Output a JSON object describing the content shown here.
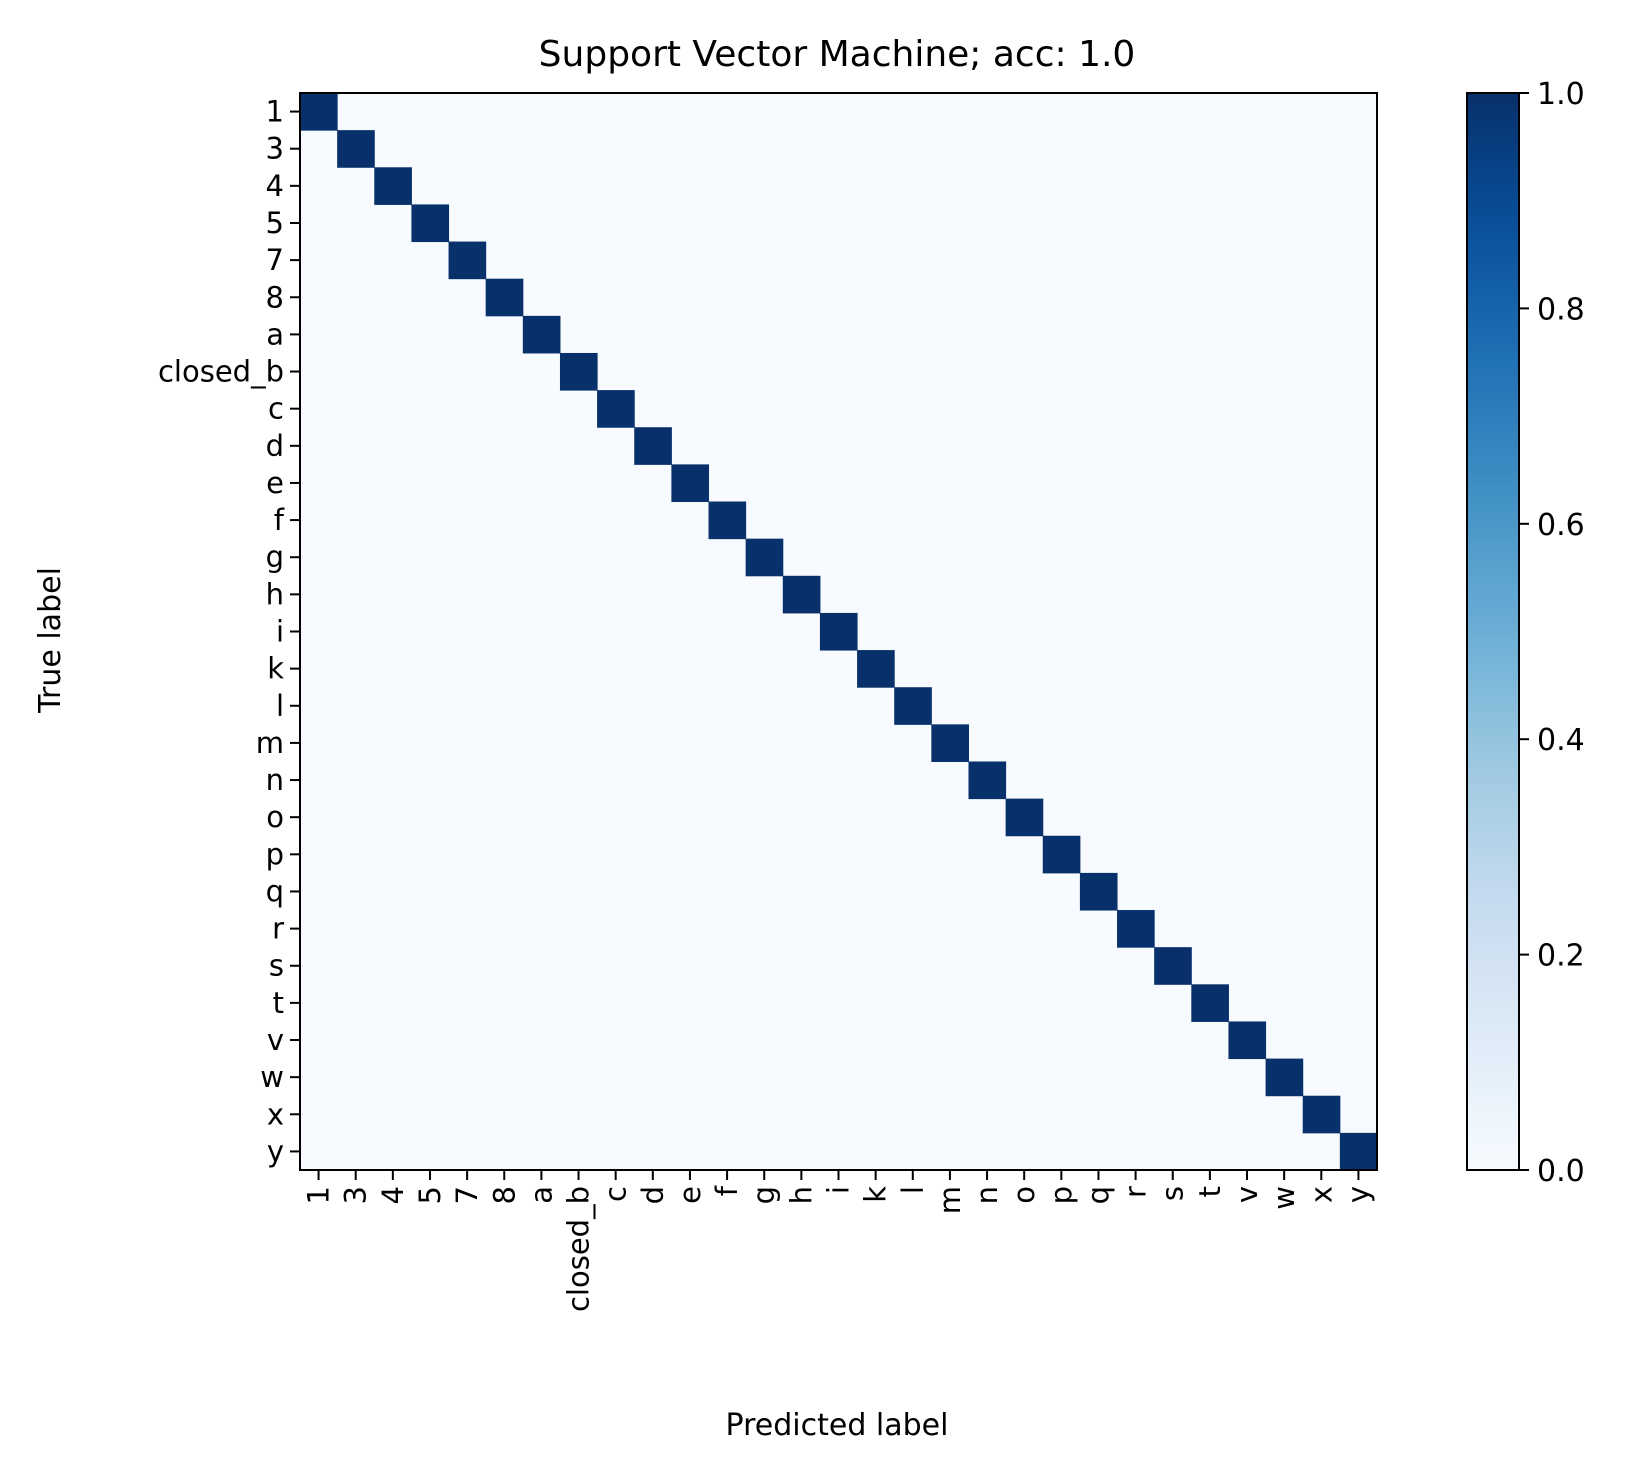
{
  "chart_data": {
    "type": "heatmap",
    "title": "Support Vector Machine; acc: 1.0",
    "xlabel": "Predicted label",
    "ylabel": "True label",
    "labels": [
      "1",
      "3",
      "4",
      "5",
      "7",
      "8",
      "a",
      "closed_b",
      "c",
      "d",
      "e",
      "f",
      "g",
      "h",
      "i",
      "k",
      "l",
      "m",
      "n",
      "o",
      "p",
      "q",
      "r",
      "s",
      "t",
      "v",
      "w",
      "x",
      "y"
    ],
    "values": "identity",
    "diagonal_value": 1.0,
    "off_diagonal_value": 0.0,
    "colormap": "Blues",
    "colorbar": {
      "range": [
        0.0,
        1.0
      ],
      "ticks": [
        "0.0",
        "0.2",
        "0.4",
        "0.6",
        "0.8",
        "1.0"
      ]
    },
    "colors": {
      "low": "#f7fbff",
      "high": "#08306b"
    },
    "grid": false,
    "legend": "colorbar-right"
  }
}
